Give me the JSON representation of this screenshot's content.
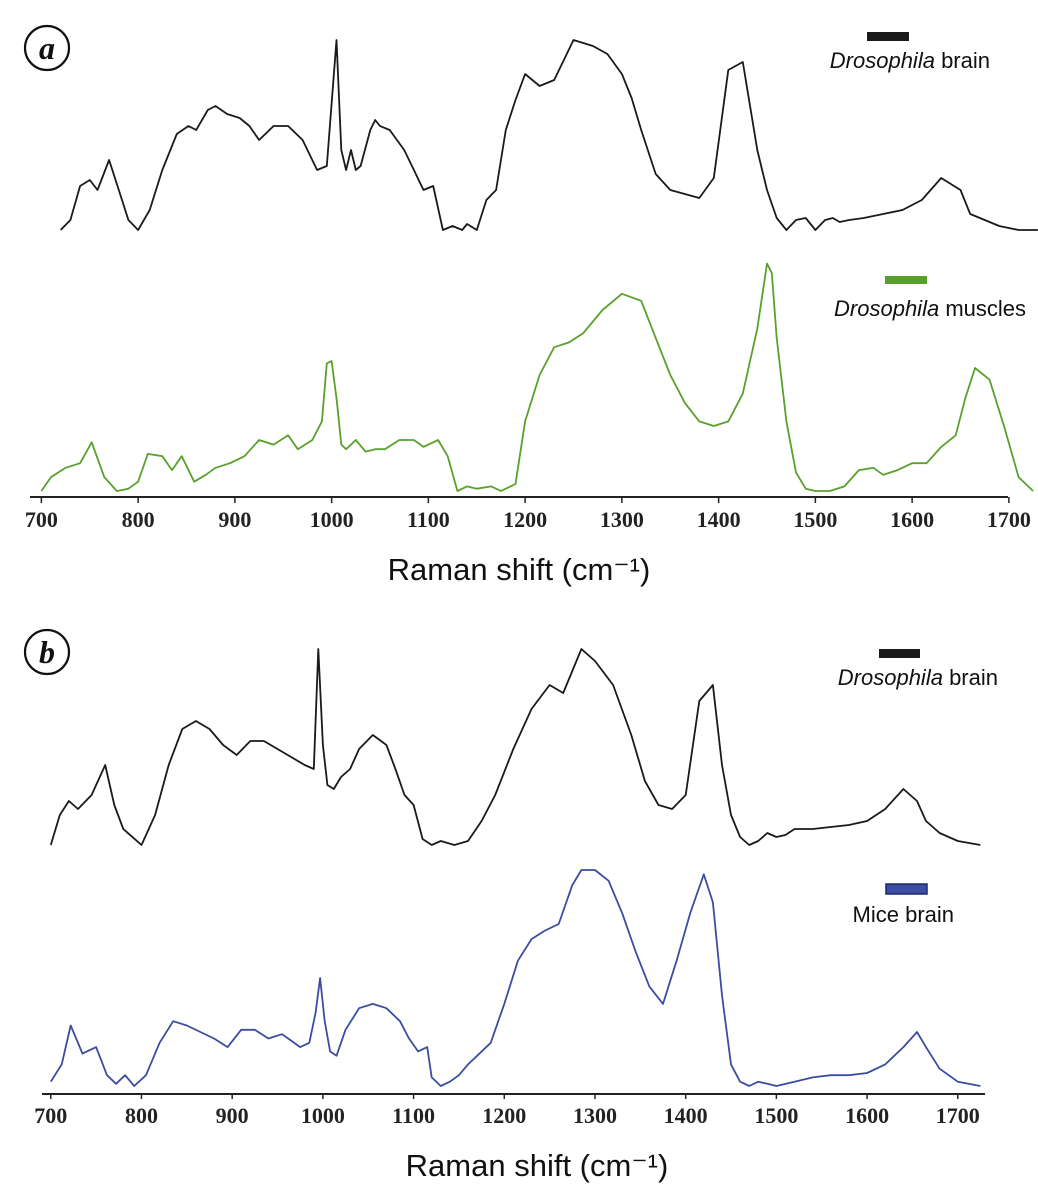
{
  "chart_data": [
    {
      "type": "line",
      "panel_label": "a",
      "xlabel": "Raman shift (cm⁻¹)",
      "ylabel": "",
      "xlim": [
        690,
        1730
      ],
      "ticks": [
        700,
        800,
        900,
        1000,
        1100,
        1200,
        1300,
        1400,
        1500,
        1600,
        1700
      ],
      "y_axis_visible": false,
      "grid": false,
      "legend_position": "top-right, beside each trace",
      "series": [
        {
          "name_italic": "Drosophila",
          "name_rest": " brain",
          "color": "#1a1a1a",
          "x": [
            720,
            730,
            740,
            750,
            758,
            770,
            780,
            790,
            800,
            812,
            825,
            840,
            852,
            860,
            872,
            880,
            892,
            905,
            915,
            925,
            940,
            955,
            970,
            985,
            995,
            1005,
            1010,
            1015,
            1020,
            1025,
            1030,
            1040,
            1045,
            1050,
            1060,
            1075,
            1085,
            1095,
            1105,
            1115,
            1125,
            1135,
            1140,
            1150,
            1160,
            1170,
            1180,
            1190,
            1200,
            1215,
            1230,
            1250,
            1270,
            1285,
            1300,
            1310,
            1320,
            1335,
            1350,
            1365,
            1380,
            1395,
            1410,
            1425,
            1440,
            1450,
            1460,
            1470,
            1480,
            1490,
            1500,
            1510,
            1518,
            1525,
            1535,
            1550,
            1570,
            1590,
            1610,
            1630,
            1650,
            1660,
            1670,
            1690,
            1710,
            1730
          ],
          "y": [
            0.0,
            0.05,
            0.22,
            0.25,
            0.2,
            0.35,
            0.2,
            0.05,
            0.0,
            0.1,
            0.3,
            0.48,
            0.52,
            0.5,
            0.6,
            0.62,
            0.58,
            0.56,
            0.52,
            0.45,
            0.52,
            0.52,
            0.45,
            0.3,
            0.32,
            0.95,
            0.4,
            0.3,
            0.4,
            0.3,
            0.32,
            0.5,
            0.55,
            0.52,
            0.5,
            0.4,
            0.3,
            0.2,
            0.22,
            0.0,
            0.02,
            0.0,
            0.03,
            0.0,
            0.15,
            0.2,
            0.5,
            0.65,
            0.78,
            0.72,
            0.75,
            0.95,
            0.92,
            0.88,
            0.78,
            0.66,
            0.5,
            0.28,
            0.2,
            0.18,
            0.16,
            0.26,
            0.8,
            0.84,
            0.4,
            0.2,
            0.06,
            0.0,
            0.05,
            0.06,
            0.0,
            0.05,
            0.06,
            0.04,
            0.05,
            0.06,
            0.08,
            0.1,
            0.15,
            0.26,
            0.2,
            0.08,
            0.06,
            0.02,
            0.0,
            0.0
          ]
        },
        {
          "name_italic": "Drosophila",
          "name_rest": " muscles",
          "color": "#5aa02c",
          "x": [
            700,
            710,
            725,
            740,
            752,
            765,
            778,
            790,
            800,
            810,
            825,
            835,
            845,
            858,
            870,
            880,
            895,
            910,
            925,
            940,
            955,
            965,
            980,
            990,
            995,
            1000,
            1005,
            1010,
            1015,
            1025,
            1035,
            1045,
            1055,
            1070,
            1085,
            1095,
            1110,
            1120,
            1130,
            1140,
            1150,
            1165,
            1175,
            1190,
            1200,
            1215,
            1230,
            1245,
            1260,
            1280,
            1300,
            1320,
            1335,
            1350,
            1365,
            1380,
            1395,
            1410,
            1425,
            1440,
            1450,
            1455,
            1460,
            1470,
            1480,
            1490,
            1500,
            1515,
            1530,
            1545,
            1560,
            1570,
            1585,
            1600,
            1615,
            1630,
            1645,
            1655,
            1665,
            1680,
            1695,
            1710,
            1725
          ],
          "y": [
            0.0,
            0.06,
            0.1,
            0.12,
            0.21,
            0.06,
            0.0,
            0.01,
            0.04,
            0.16,
            0.15,
            0.09,
            0.15,
            0.04,
            0.07,
            0.1,
            0.12,
            0.15,
            0.22,
            0.2,
            0.24,
            0.18,
            0.22,
            0.3,
            0.55,
            0.56,
            0.4,
            0.2,
            0.18,
            0.22,
            0.17,
            0.18,
            0.18,
            0.22,
            0.22,
            0.19,
            0.22,
            0.15,
            0.0,
            0.02,
            0.01,
            0.02,
            0.0,
            0.03,
            0.3,
            0.5,
            0.62,
            0.64,
            0.68,
            0.78,
            0.85,
            0.82,
            0.66,
            0.5,
            0.38,
            0.3,
            0.28,
            0.3,
            0.42,
            0.7,
            0.98,
            0.94,
            0.66,
            0.3,
            0.08,
            0.01,
            0.0,
            0.0,
            0.02,
            0.09,
            0.1,
            0.07,
            0.09,
            0.12,
            0.12,
            0.19,
            0.24,
            0.4,
            0.53,
            0.48,
            0.28,
            0.06,
            0.0
          ]
        }
      ]
    },
    {
      "type": "line",
      "panel_label": "b",
      "xlabel": "Raman shift (cm⁻¹)",
      "ylabel": "",
      "xlim": [
        690,
        1730
      ],
      "ticks": [
        700,
        800,
        900,
        1000,
        1100,
        1200,
        1300,
        1400,
        1500,
        1600,
        1700
      ],
      "y_axis_visible": false,
      "grid": false,
      "legend_position": "top-right, beside each trace",
      "series": [
        {
          "name_italic": "Drosophila",
          "name_rest": " brain",
          "color": "#1a1a1a",
          "x": [
            700,
            710,
            720,
            730,
            745,
            760,
            770,
            780,
            800,
            815,
            830,
            845,
            860,
            875,
            890,
            905,
            920,
            935,
            950,
            965,
            980,
            990,
            995,
            1000,
            1005,
            1012,
            1020,
            1030,
            1040,
            1055,
            1070,
            1080,
            1090,
            1100,
            1110,
            1120,
            1130,
            1145,
            1160,
            1175,
            1190,
            1210,
            1230,
            1250,
            1265,
            1285,
            1300,
            1320,
            1340,
            1355,
            1370,
            1385,
            1400,
            1415,
            1430,
            1440,
            1450,
            1460,
            1470,
            1480,
            1490,
            1500,
            1510,
            1520,
            1540,
            1560,
            1580,
            1600,
            1620,
            1640,
            1655,
            1665,
            1680,
            1700,
            1725
          ],
          "y": [
            0.0,
            0.15,
            0.22,
            0.18,
            0.25,
            0.4,
            0.2,
            0.08,
            0.0,
            0.15,
            0.4,
            0.58,
            0.62,
            0.58,
            0.5,
            0.45,
            0.52,
            0.52,
            0.48,
            0.44,
            0.4,
            0.38,
            0.98,
            0.5,
            0.3,
            0.28,
            0.34,
            0.38,
            0.48,
            0.55,
            0.5,
            0.38,
            0.25,
            0.2,
            0.03,
            0.0,
            0.02,
            0.0,
            0.02,
            0.12,
            0.25,
            0.48,
            0.68,
            0.8,
            0.76,
            0.98,
            0.92,
            0.8,
            0.55,
            0.32,
            0.2,
            0.18,
            0.25,
            0.72,
            0.8,
            0.4,
            0.15,
            0.04,
            0.0,
            0.02,
            0.06,
            0.04,
            0.05,
            0.08,
            0.08,
            0.09,
            0.1,
            0.12,
            0.18,
            0.28,
            0.22,
            0.12,
            0.06,
            0.02,
            0.0
          ]
        },
        {
          "name_italic": "",
          "name_rest": "Mice brain",
          "color": "#3a4da0",
          "x": [
            700,
            712,
            722,
            735,
            750,
            762,
            772,
            782,
            792,
            805,
            820,
            835,
            850,
            865,
            880,
            895,
            910,
            925,
            940,
            955,
            965,
            975,
            985,
            992,
            997,
            1002,
            1008,
            1015,
            1025,
            1040,
            1055,
            1070,
            1085,
            1095,
            1105,
            1115,
            1120,
            1130,
            1140,
            1150,
            1160,
            1170,
            1185,
            1200,
            1215,
            1230,
            1245,
            1260,
            1275,
            1285,
            1300,
            1315,
            1330,
            1345,
            1360,
            1375,
            1390,
            1405,
            1420,
            1430,
            1440,
            1450,
            1460,
            1470,
            1480,
            1490,
            1500,
            1520,
            1540,
            1560,
            1580,
            1600,
            1620,
            1640,
            1655,
            1665,
            1680,
            1700,
            1725
          ],
          "y": [
            0.02,
            0.1,
            0.28,
            0.15,
            0.18,
            0.05,
            0.01,
            0.05,
            0.0,
            0.05,
            0.2,
            0.3,
            0.28,
            0.25,
            0.22,
            0.18,
            0.26,
            0.26,
            0.22,
            0.24,
            0.21,
            0.18,
            0.2,
            0.34,
            0.5,
            0.3,
            0.16,
            0.14,
            0.26,
            0.36,
            0.38,
            0.36,
            0.3,
            0.22,
            0.16,
            0.18,
            0.04,
            0.0,
            0.02,
            0.05,
            0.1,
            0.14,
            0.2,
            0.38,
            0.58,
            0.68,
            0.72,
            0.75,
            0.93,
            1.0,
            1.0,
            0.95,
            0.8,
            0.62,
            0.46,
            0.38,
            0.58,
            0.8,
            0.98,
            0.85,
            0.42,
            0.1,
            0.02,
            0.0,
            0.02,
            0.01,
            0.0,
            0.02,
            0.04,
            0.05,
            0.05,
            0.06,
            0.1,
            0.18,
            0.25,
            0.18,
            0.08,
            0.02,
            0.0
          ]
        }
      ]
    }
  ]
}
